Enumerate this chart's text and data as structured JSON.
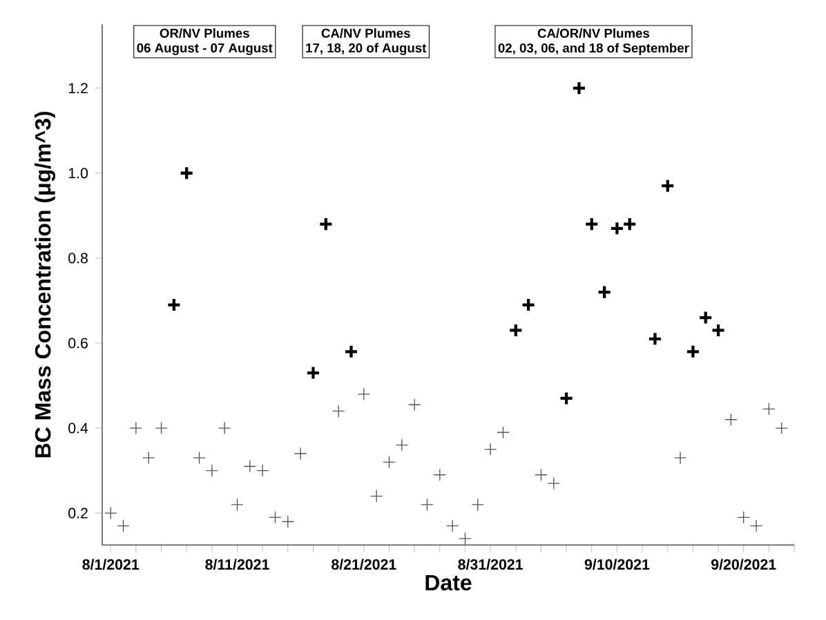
{
  "chart_data": {
    "type": "scatter",
    "xlabel": "Date",
    "ylabel": "BC Mass Concentration (μg/m^3)",
    "annotations": [
      "OR/NV Plumes",
      "06 August - 07 August",
      "CA/NV Plumes",
      "17, 18, 20 of August",
      "CA/OR/NV Plumes",
      "02, 03, 06, and 18 of September"
    ],
    "marker": "cross",
    "series": [
      {
        "color": "#555555",
        "x": [
          "2021-08-01",
          "2021-08-02",
          "2021-08-03",
          "2021-08-04",
          "2021-08-05",
          "2021-08-08",
          "2021-08-09",
          "2021-08-10",
          "2021-08-11",
          "2021-08-12",
          "2021-08-13",
          "2021-08-14",
          "2021-08-15",
          "2021-08-16",
          "2021-08-19",
          "2021-08-21",
          "2021-08-22",
          "2021-08-23",
          "2021-08-24",
          "2021-08-25",
          "2021-08-26",
          "2021-08-27",
          "2021-08-28",
          "2021-08-29",
          "2021-08-30",
          "2021-08-31",
          "2021-09-01",
          "2021-09-04",
          "2021-09-05",
          "2021-09-15",
          "2021-09-19",
          "2021-09-20",
          "2021-09-21",
          "2021-09-22",
          "2021-09-23"
        ],
        "values": [
          0.2,
          0.17,
          0.4,
          0.33,
          0.4,
          0.33,
          0.3,
          0.4,
          0.22,
          0.31,
          0.3,
          0.19,
          0.18,
          0.34,
          0.44,
          0.48,
          0.24,
          0.32,
          0.36,
          0.455,
          0.22,
          0.29,
          0.17,
          0.14,
          0.22,
          0.35,
          0.39,
          0.29,
          0.27,
          0.33,
          0.42,
          0.19,
          0.17,
          0.445,
          0.4
        ]
      },
      {
        "color": "#000000",
        "x": [
          "2021-08-06",
          "2021-08-07",
          "2021-08-17",
          "2021-08-18",
          "2021-08-20",
          "2021-09-02",
          "2021-09-03",
          "2021-09-06",
          "2021-09-07",
          "2021-09-08",
          "2021-09-09",
          "2021-09-10",
          "2021-09-11",
          "2021-09-13",
          "2021-09-14",
          "2021-09-16",
          "2021-09-17",
          "2021-09-18"
        ],
        "values": [
          0.69,
          1.0,
          0.53,
          0.88,
          0.58,
          0.63,
          0.69,
          0.47,
          1.2,
          0.88,
          0.72,
          0.87,
          0.88,
          0.61,
          0.97,
          0.58,
          0.66,
          0.63
        ]
      }
    ],
    "xlim": [
      "2021-07-31T08:00",
      "2021-09-24"
    ],
    "xticks": [
      {
        "value": "2021-08-01",
        "label": "8/1/2021"
      },
      {
        "value": "2021-08-03",
        "label": null
      },
      {
        "value": "2021-08-05",
        "label": null
      },
      {
        "value": "2021-08-07",
        "label": null
      },
      {
        "value": "2021-08-09",
        "label": null
      },
      {
        "value": "2021-08-11",
        "label": "8/11/2021"
      },
      {
        "value": "2021-08-13",
        "label": null
      },
      {
        "value": "2021-08-15",
        "label": null
      },
      {
        "value": "2021-08-17",
        "label": null
      },
      {
        "value": "2021-08-19",
        "label": null
      },
      {
        "value": "2021-08-21",
        "label": "8/21/2021"
      },
      {
        "value": "2021-08-23",
        "label": null
      },
      {
        "value": "2021-08-25",
        "label": null
      },
      {
        "value": "2021-08-27",
        "label": null
      },
      {
        "value": "2021-08-29",
        "label": null
      },
      {
        "value": "2021-08-31",
        "label": "8/31/2021"
      },
      {
        "value": "2021-09-02",
        "label": null
      },
      {
        "value": "2021-09-04",
        "label": null
      },
      {
        "value": "2021-09-06",
        "label": null
      },
      {
        "value": "2021-09-08",
        "label": null
      },
      {
        "value": "2021-09-10",
        "label": "9/10/2021"
      },
      {
        "value": "2021-09-12",
        "label": null
      },
      {
        "value": "2021-09-14",
        "label": null
      },
      {
        "value": "2021-09-16",
        "label": null
      },
      {
        "value": "2021-09-18",
        "label": null
      },
      {
        "value": "2021-09-20",
        "label": "9/20/2021"
      },
      {
        "value": "2021-09-22",
        "label": null
      },
      {
        "value": "2021-09-24",
        "label": null
      }
    ],
    "ylim": [
      0.125,
      1.35
    ],
    "yticks": [
      0.2,
      0.4,
      0.6,
      0.8,
      {
        "value": 1.0,
        "label": "1.0"
      },
      1.2
    ]
  }
}
